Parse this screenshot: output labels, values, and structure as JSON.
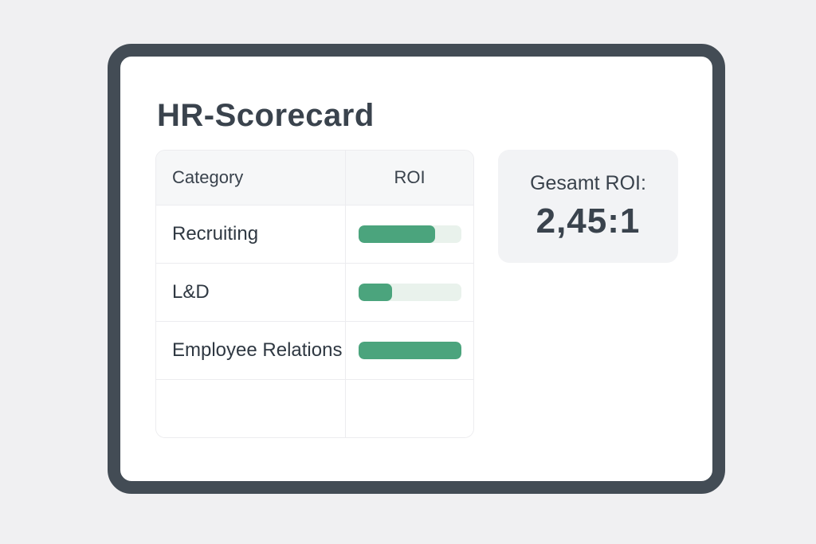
{
  "card": {
    "title": "HR-Scorecard"
  },
  "table": {
    "columns": [
      "Category",
      "ROI"
    ],
    "rows": [
      {
        "category": "Recruiting",
        "roi_percent": 75
      },
      {
        "category": "L&D",
        "roi_percent": 33
      },
      {
        "category": "Employee Relations",
        "roi_percent": 100
      },
      {
        "category": "",
        "roi_percent": null
      }
    ]
  },
  "summary": {
    "label": "Gesamt ROI:",
    "value": "2,45:1"
  },
  "colors": {
    "frame": "#434c55",
    "bar_fill": "#4ba47d",
    "bar_track": "#e9f2ec",
    "panel_background": "#f2f3f5",
    "page_background": "#f0f0f2"
  }
}
